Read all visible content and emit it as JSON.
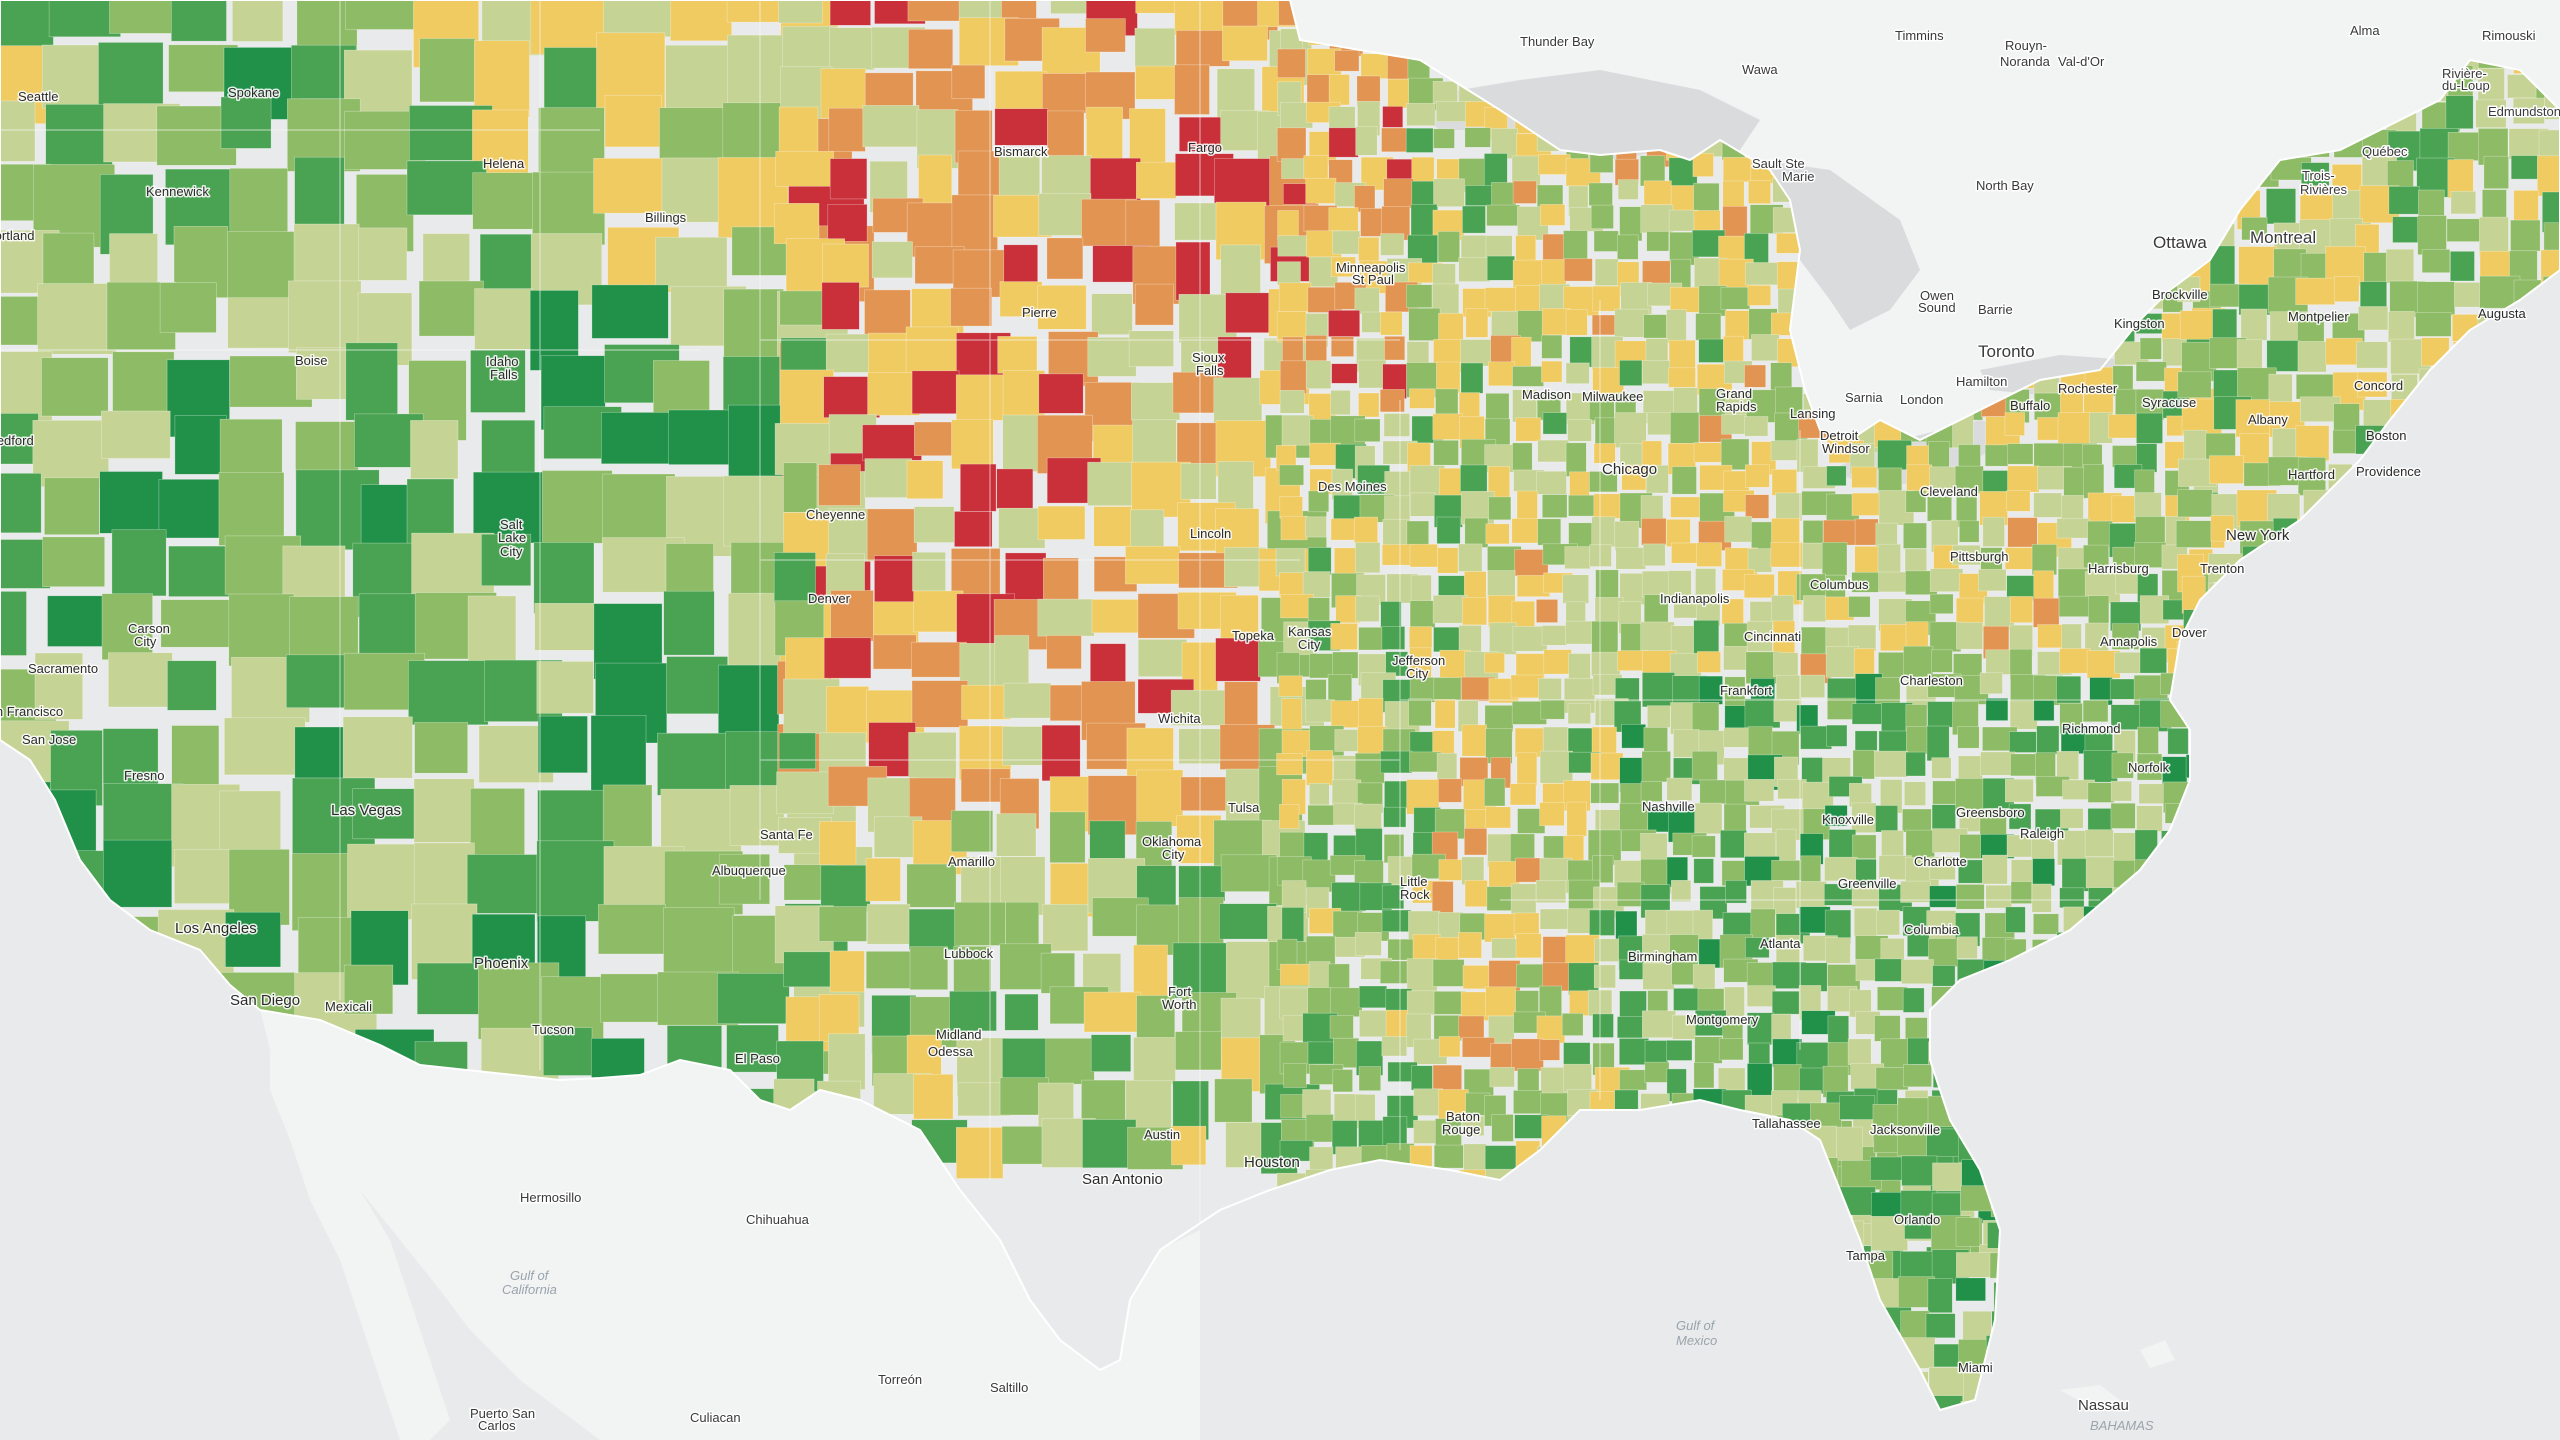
{
  "legend_colors": {
    "red": "#c9303a",
    "orange": "#e29552",
    "yellow": "#efcb62",
    "light_green": "#c5d394",
    "mid_green": "#8ebb65",
    "green": "#4aa352",
    "dark_green": "#21914a"
  },
  "palette": {
    "water": "#e9eaeb",
    "land_outside": "#f2f3f3",
    "county_border": "#ffffff"
  },
  "labels": [
    {
      "id": "thunder-bay",
      "text": "Thunder Bay"
    },
    {
      "id": "timmins",
      "text": "Timmins"
    },
    {
      "id": "rouyn-noranda",
      "text": "Rouyn-"
    },
    {
      "id": "rouyn-noranda-2",
      "text": "Noranda"
    },
    {
      "id": "val-dor",
      "text": "Val-d'Or"
    },
    {
      "id": "alma",
      "text": "Alma"
    },
    {
      "id": "rimouski",
      "text": "Rimouski"
    },
    {
      "id": "riviere-du-loup",
      "text": "Rivière-"
    },
    {
      "id": "riviere-du-loup-2",
      "text": "du-Loup"
    },
    {
      "id": "edmundston",
      "text": "Edmundston"
    },
    {
      "id": "wawa",
      "text": "Wawa"
    },
    {
      "id": "quebec",
      "text": "Québec"
    },
    {
      "id": "north-bay",
      "text": "North Bay"
    },
    {
      "id": "trois-rivieres",
      "text": "Trois-"
    },
    {
      "id": "trois-rivieres-2",
      "text": "Rivières"
    },
    {
      "id": "ottawa",
      "text": "Ottawa"
    },
    {
      "id": "montreal",
      "text": "Montreal"
    },
    {
      "id": "owen-sound",
      "text": "Owen"
    },
    {
      "id": "owen-sound-2",
      "text": "Sound"
    },
    {
      "id": "barrie",
      "text": "Barrie"
    },
    {
      "id": "toronto",
      "text": "Toronto"
    },
    {
      "id": "hamilton",
      "text": "Hamilton"
    },
    {
      "id": "london",
      "text": "London"
    },
    {
      "id": "sarnia",
      "text": "Sarnia"
    },
    {
      "id": "sault-ste-marie",
      "text": "Sault Ste"
    },
    {
      "id": "sault-ste-marie-2",
      "text": "Marie"
    },
    {
      "id": "seattle",
      "text": "Seattle"
    },
    {
      "id": "spokane",
      "text": "Spokane"
    },
    {
      "id": "kennewick",
      "text": "Kennewick"
    },
    {
      "id": "portland",
      "text": "Portland"
    },
    {
      "id": "helena",
      "text": "Helena"
    },
    {
      "id": "billings",
      "text": "Billings"
    },
    {
      "id": "boise",
      "text": "Boise"
    },
    {
      "id": "idaho-falls",
      "text": "Idaho"
    },
    {
      "id": "idaho-falls-2",
      "text": "Falls"
    },
    {
      "id": "medford",
      "text": "Medford"
    },
    {
      "id": "salt-lake-city",
      "text": "Salt"
    },
    {
      "id": "salt-lake-city-2",
      "text": "Lake"
    },
    {
      "id": "salt-lake-city-3",
      "text": "City"
    },
    {
      "id": "carson-city",
      "text": "Carson"
    },
    {
      "id": "carson-city-2",
      "text": "City"
    },
    {
      "id": "sacramento",
      "text": "Sacramento"
    },
    {
      "id": "san-francisco",
      "text": "San Francisco"
    },
    {
      "id": "san-jose",
      "text": "San Jose"
    },
    {
      "id": "fresno",
      "text": "Fresno"
    },
    {
      "id": "las-vegas",
      "text": "Las Vegas"
    },
    {
      "id": "los-angeles",
      "text": "Los Angeles"
    },
    {
      "id": "san-diego",
      "text": "San Diego"
    },
    {
      "id": "mexicali",
      "text": "Mexicali"
    },
    {
      "id": "phoenix",
      "text": "Phoenix"
    },
    {
      "id": "tucson",
      "text": "Tucson"
    },
    {
      "id": "cheyenne",
      "text": "Cheyenne"
    },
    {
      "id": "denver",
      "text": "Denver"
    },
    {
      "id": "santa-fe",
      "text": "Santa Fe"
    },
    {
      "id": "albuquerque",
      "text": "Albuquerque"
    },
    {
      "id": "el-paso",
      "text": "El Paso"
    },
    {
      "id": "bismarck",
      "text": "Bismarck"
    },
    {
      "id": "fargo",
      "text": "Fargo"
    },
    {
      "id": "pierre",
      "text": "Pierre"
    },
    {
      "id": "sioux-falls",
      "text": "Sioux"
    },
    {
      "id": "sioux-falls-2",
      "text": "Falls"
    },
    {
      "id": "minneapolis",
      "text": "Minneapolis"
    },
    {
      "id": "st-paul",
      "text": "St Paul"
    },
    {
      "id": "madison",
      "text": "Madison"
    },
    {
      "id": "milwaukee",
      "text": "Milwaukee"
    },
    {
      "id": "grand-rapids",
      "text": "Grand"
    },
    {
      "id": "grand-rapids-2",
      "text": "Rapids"
    },
    {
      "id": "lansing",
      "text": "Lansing"
    },
    {
      "id": "detroit",
      "text": "Detroit"
    },
    {
      "id": "windsor",
      "text": "Windsor"
    },
    {
      "id": "chicago",
      "text": "Chicago"
    },
    {
      "id": "des-moines",
      "text": "Des Moines"
    },
    {
      "id": "lincoln",
      "text": "Lincoln"
    },
    {
      "id": "topeka",
      "text": "Topeka"
    },
    {
      "id": "kansas-city",
      "text": "Kansas"
    },
    {
      "id": "kansas-city-2",
      "text": "City"
    },
    {
      "id": "jefferson-city",
      "text": "Jefferson"
    },
    {
      "id": "jefferson-city-2",
      "text": "City"
    },
    {
      "id": "wichita",
      "text": "Wichita"
    },
    {
      "id": "tulsa",
      "text": "Tulsa"
    },
    {
      "id": "oklahoma-city",
      "text": "Oklahoma"
    },
    {
      "id": "oklahoma-city-2",
      "text": "City"
    },
    {
      "id": "amarillo",
      "text": "Amarillo"
    },
    {
      "id": "lubbock",
      "text": "Lubbock"
    },
    {
      "id": "midland",
      "text": "Midland"
    },
    {
      "id": "odessa",
      "text": "Odessa"
    },
    {
      "id": "fort-worth",
      "text": "Fort"
    },
    {
      "id": "fort-worth-2",
      "text": "Worth"
    },
    {
      "id": "austin",
      "text": "Austin"
    },
    {
      "id": "san-antonio",
      "text": "San Antonio"
    },
    {
      "id": "houston",
      "text": "Houston"
    },
    {
      "id": "little-rock",
      "text": "Little"
    },
    {
      "id": "little-rock-2",
      "text": "Rock"
    },
    {
      "id": "baton-rouge",
      "text": "Baton"
    },
    {
      "id": "baton-rouge-2",
      "text": "Rouge"
    },
    {
      "id": "indianapolis",
      "text": "Indianapolis"
    },
    {
      "id": "columbus",
      "text": "Columbus"
    },
    {
      "id": "cincinnati",
      "text": "Cincinnati"
    },
    {
      "id": "frankfort",
      "text": "Frankfort"
    },
    {
      "id": "charleston",
      "text": "Charleston"
    },
    {
      "id": "cleveland",
      "text": "Cleveland"
    },
    {
      "id": "pittsburgh",
      "text": "Pittsburgh"
    },
    {
      "id": "nashville",
      "text": "Nashville"
    },
    {
      "id": "knoxville",
      "text": "Knoxville"
    },
    {
      "id": "birmingham",
      "text": "Birmingham"
    },
    {
      "id": "montgomery",
      "text": "Montgomery"
    },
    {
      "id": "atlanta",
      "text": "Atlanta"
    },
    {
      "id": "greenville",
      "text": "Greenville"
    },
    {
      "id": "charlotte",
      "text": "Charlotte"
    },
    {
      "id": "columbia",
      "text": "Columbia"
    },
    {
      "id": "greensboro",
      "text": "Greensboro"
    },
    {
      "id": "raleigh",
      "text": "Raleigh"
    },
    {
      "id": "richmond",
      "text": "Richmond"
    },
    {
      "id": "norfolk",
      "text": "Norfolk"
    },
    {
      "id": "annapolis",
      "text": "Annapolis"
    },
    {
      "id": "dover",
      "text": "Dover"
    },
    {
      "id": "trenton",
      "text": "Trenton"
    },
    {
      "id": "harrisburg",
      "text": "Harrisburg"
    },
    {
      "id": "new-york",
      "text": "New York"
    },
    {
      "id": "hartford",
      "text": "Hartford"
    },
    {
      "id": "providence",
      "text": "Providence"
    },
    {
      "id": "boston",
      "text": "Boston"
    },
    {
      "id": "concord",
      "text": "Concord"
    },
    {
      "id": "augusta",
      "text": "Augusta"
    },
    {
      "id": "montpelier",
      "text": "Montpelier"
    },
    {
      "id": "albany",
      "text": "Albany"
    },
    {
      "id": "syracuse",
      "text": "Syracuse"
    },
    {
      "id": "rochester",
      "text": "Rochester"
    },
    {
      "id": "buffalo",
      "text": "Buffalo"
    },
    {
      "id": "kingston",
      "text": "Kingston"
    },
    {
      "id": "brockville",
      "text": "Brockville"
    },
    {
      "id": "tallahassee",
      "text": "Tallahassee"
    },
    {
      "id": "jacksonville",
      "text": "Jacksonville"
    },
    {
      "id": "orlando",
      "text": "Orlando"
    },
    {
      "id": "tampa",
      "text": "Tampa"
    },
    {
      "id": "miami",
      "text": "Miami"
    },
    {
      "id": "nassau",
      "text": "Nassau"
    },
    {
      "id": "bahamas",
      "text": "BAHAMAS"
    },
    {
      "id": "hermosillo",
      "text": "Hermosillo"
    },
    {
      "id": "chihuahua",
      "text": "Chihuahua"
    },
    {
      "id": "torreon",
      "text": "Torreón"
    },
    {
      "id": "saltillo",
      "text": "Saltillo"
    },
    {
      "id": "culiacan",
      "text": "Culiacan"
    },
    {
      "id": "puerto-san-carlos",
      "text": "Puerto San"
    },
    {
      "id": "puerto-san-carlos-2",
      "text": "Carlos"
    },
    {
      "id": "gulf-california",
      "text": "Gulf of"
    },
    {
      "id": "gulf-california-2",
      "text": "California"
    },
    {
      "id": "gulf-mexico",
      "text": "Gulf of"
    },
    {
      "id": "gulf-mexico-2",
      "text": "Mexico"
    }
  ]
}
